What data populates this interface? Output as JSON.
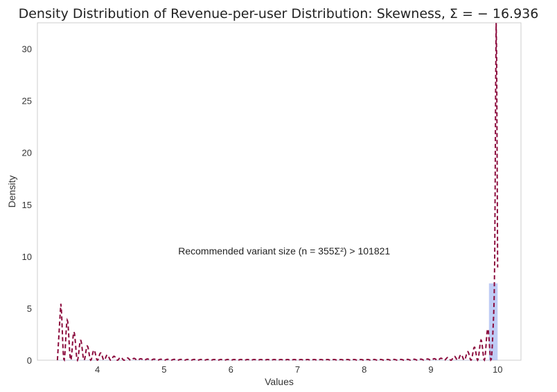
{
  "chart_data": {
    "type": "line",
    "title": "Density Distribution of Revenue-per-user  Distribution: Skewness, Σ = − 16.936",
    "xlabel": "Values",
    "ylabel": "Density",
    "xlim": [
      3.1,
      10.35
    ],
    "ylim": [
      0,
      32.5
    ],
    "x_ticks": [
      4,
      5,
      6,
      7,
      8,
      9,
      10
    ],
    "y_ticks": [
      0,
      5,
      10,
      15,
      20,
      25,
      30
    ],
    "grid": false,
    "annotation": {
      "text": "Recommended variant size (n = 355Σ²) >  101821",
      "x": 6.8,
      "y": 10.2
    },
    "series": [
      {
        "type": "bar",
        "color": "#aabbf2",
        "bins": [
          {
            "x0": 3.4,
            "x1": 9.87,
            "height": 0.02
          },
          {
            "x0": 9.87,
            "x1": 10.0,
            "height": 7.4
          }
        ]
      },
      {
        "type": "line",
        "style": "dashed",
        "color": "#8b0a3c",
        "x_min": 3.4,
        "x_max": 10.0,
        "sample_count": 900,
        "oscillation_period": 0.1,
        "left_edge": {
          "x": 3.45,
          "y": 5.4,
          "decay": 0.28
        },
        "right_peak": {
          "x": 9.98,
          "y": 30.7,
          "decay": 0.018
        },
        "right_shoulder": {
          "y": 5.8,
          "decay": 0.22
        }
      }
    ]
  }
}
